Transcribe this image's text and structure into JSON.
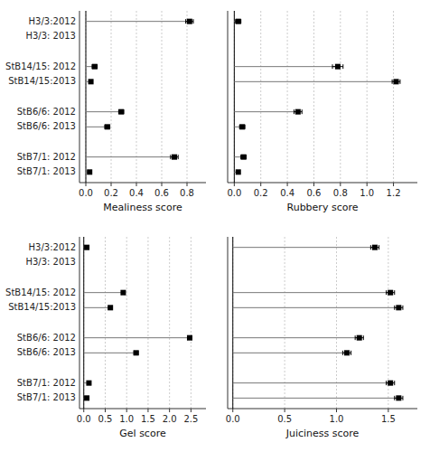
{
  "chart_data": [
    {
      "type": "lollipop",
      "orientation": "horizontal",
      "xlabel": "Mealiness score",
      "categories": [
        "H3/3:2012",
        "H3/3: 2013",
        null,
        "StB14/15: 2012",
        "StB14/15:2013",
        null,
        "StB6/6: 2012",
        "StB6/6: 2013",
        null,
        "StB7/1: 2012",
        "StB7/1: 2013"
      ],
      "values": [
        0.82,
        null,
        null,
        0.07,
        0.04,
        null,
        0.28,
        0.17,
        null,
        0.7,
        0.03
      ],
      "errors": [
        0.03,
        null,
        null,
        0.02,
        0.01,
        null,
        0.02,
        0.02,
        null,
        0.03,
        0.01
      ],
      "xlim": [
        -0.05,
        0.95
      ],
      "xticks": [
        {
          "value": 0.0,
          "label": "0.0"
        },
        {
          "value": 0.2,
          "label": "0.2"
        },
        {
          "value": 0.4,
          "label": "0.4"
        },
        {
          "value": 0.6,
          "label": "0.6"
        },
        {
          "value": 0.8,
          "label": "0.8"
        }
      ],
      "grid": true,
      "color": "black",
      "marker": "square"
    },
    {
      "type": "lollipop",
      "orientation": "horizontal",
      "xlabel": "Rubbery score",
      "categories": [
        "H3/3:2012",
        "H3/3: 2013",
        null,
        "StB14/15: 2012",
        "StB14/15:2013",
        null,
        "StB6/6: 2012",
        "StB6/6: 2013",
        null,
        "StB7/1: 2012",
        "StB7/1: 2013"
      ],
      "values": [
        0.03,
        null,
        null,
        0.78,
        1.22,
        null,
        0.48,
        0.06,
        null,
        0.07,
        0.03
      ],
      "errors": [
        0.02,
        null,
        null,
        0.04,
        0.03,
        null,
        0.03,
        0.02,
        null,
        0.02,
        0.01
      ],
      "xlim": [
        -0.05,
        1.38
      ],
      "xticks": [
        {
          "value": 0.0,
          "label": "0.0"
        },
        {
          "value": 0.2,
          "label": "0.2"
        },
        {
          "value": 0.4,
          "label": "0.4"
        },
        {
          "value": 0.6,
          "label": "0.6"
        },
        {
          "value": 0.8,
          "label": "0.8"
        },
        {
          "value": 1.0,
          "label": "1.0"
        },
        {
          "value": 1.2,
          "label": "1.2"
        }
      ],
      "grid": true,
      "color": "black",
      "marker": "square",
      "tick_labels": "x"
    },
    {
      "type": "lollipop",
      "orientation": "horizontal",
      "xlabel": "Gel score",
      "categories": [
        "H3/3:2012",
        "H3/3: 2013",
        null,
        "StB14/15: 2012",
        "StB14/15:2013",
        null,
        "StB6/6: 2012",
        "StB6/6: 2013",
        null,
        "StB7/1: 2012",
        "StB7/1: 2013"
      ],
      "values": [
        0.07,
        null,
        null,
        0.92,
        0.62,
        null,
        2.47,
        1.22,
        null,
        0.12,
        0.07
      ],
      "errors": [
        0.02,
        null,
        null,
        0.04,
        0.04,
        null,
        0.05,
        0.05,
        null,
        0.03,
        0.02
      ],
      "xlim": [
        -0.1,
        2.85
      ],
      "xticks": [
        {
          "value": 0.0,
          "label": "0.0"
        },
        {
          "value": 0.5,
          "label": "0.5"
        },
        {
          "value": 1.0,
          "label": "1.0"
        },
        {
          "value": 1.5,
          "label": "1.5"
        },
        {
          "value": 2.0,
          "label": "2.0"
        },
        {
          "value": 2.5,
          "label": "2.5"
        }
      ],
      "grid": true,
      "color": "black",
      "marker": "square"
    },
    {
      "type": "lollipop",
      "orientation": "horizontal",
      "xlabel": "Juiciness score",
      "categories": [
        "H3/3:2012",
        "H3/3: 2013",
        null,
        "StB14/15: 2012",
        "StB14/15:2013",
        null,
        "StB6/6: 2012",
        "StB6/6: 2013",
        null,
        "StB7/1: 2012",
        "StB7/1: 2013"
      ],
      "values": [
        1.37,
        null,
        null,
        1.52,
        1.6,
        null,
        1.22,
        1.1,
        null,
        1.52,
        1.6
      ],
      "errors": [
        0.04,
        null,
        null,
        0.04,
        0.04,
        null,
        0.04,
        0.04,
        null,
        0.04,
        0.04
      ],
      "xlim": [
        -0.05,
        1.78
      ],
      "xticks": [
        {
          "value": 0.0,
          "label": "0.0"
        },
        {
          "value": 0.5,
          "label": "0.5"
        },
        {
          "value": 1.0,
          "label": "1.0"
        },
        {
          "value": 1.5,
          "label": "1.5"
        }
      ],
      "grid": true,
      "color": "black",
      "marker": "square",
      "tick_labels": "x"
    }
  ]
}
